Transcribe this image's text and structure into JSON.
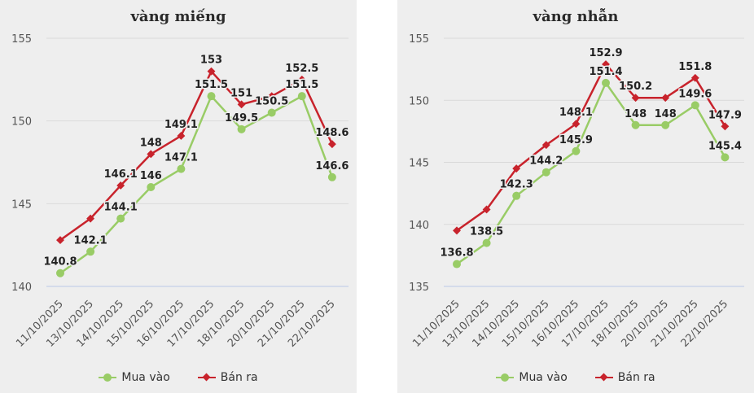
{
  "chart_data": [
    {
      "type": "line",
      "title": "vàng miếng",
      "categories": [
        "11/10/2025",
        "13/10/2025",
        "14/10/2025",
        "15/10/2025",
        "16/10/2025",
        "17/10/2025",
        "18/10/2025",
        "20/10/2025",
        "21/10/2025",
        "22/10/2025"
      ],
      "ylim": [
        140,
        155
      ],
      "yticks": [
        140,
        145,
        150,
        155
      ],
      "grid": true,
      "legend_position": "bottom",
      "series": [
        {
          "name": "Mua vào",
          "color": "#99cc66",
          "marker": "circle",
          "values": [
            140.8,
            142.1,
            144.1,
            146,
            147.1,
            151.5,
            149.5,
            150.5,
            151.5,
            146.6
          ],
          "labels": [
            "140.8",
            "142.1",
            "144.1",
            "146",
            "147.1",
            "151.5",
            "149.5",
            "150.5",
            "151.5",
            "146.6"
          ]
        },
        {
          "name": "Bán ra",
          "color": "#c8232c",
          "marker": "diamond",
          "values": [
            142.8,
            144.1,
            146.1,
            148,
            149.1,
            153,
            151,
            151.5,
            152.5,
            148.6
          ],
          "labels": [
            "",
            "",
            "146.1",
            "148",
            "149.1",
            "153",
            "151",
            "",
            "152.5",
            "148.6"
          ]
        }
      ]
    },
    {
      "type": "line",
      "title": "vàng nhẫn",
      "categories": [
        "11/10/2025",
        "13/10/2025",
        "14/10/2025",
        "15/10/2025",
        "16/10/2025",
        "17/10/2025",
        "18/10/2025",
        "20/10/2025",
        "21/10/2025",
        "22/10/2025"
      ],
      "ylim": [
        135,
        155
      ],
      "yticks": [
        135,
        140,
        145,
        150,
        155
      ],
      "grid": true,
      "legend_position": "bottom",
      "series": [
        {
          "name": "Mua vào",
          "color": "#99cc66",
          "marker": "circle",
          "values": [
            136.8,
            138.5,
            142.3,
            144.2,
            145.9,
            151.4,
            148,
            148,
            149.6,
            145.4
          ],
          "labels": [
            "136.8",
            "138.5",
            "142.3",
            "144.2",
            "145.9",
            "151.4",
            "148",
            "148",
            "149.6",
            "145.4"
          ]
        },
        {
          "name": "Bán ra",
          "color": "#c8232c",
          "marker": "diamond",
          "values": [
            139.5,
            141.2,
            144.5,
            146.4,
            148.1,
            152.9,
            150.2,
            150.2,
            151.8,
            147.9
          ],
          "labels": [
            "",
            "",
            "",
            "",
            "148.1",
            "152.9",
            "150.2",
            "",
            "151.8",
            "147.9"
          ]
        }
      ]
    }
  ]
}
